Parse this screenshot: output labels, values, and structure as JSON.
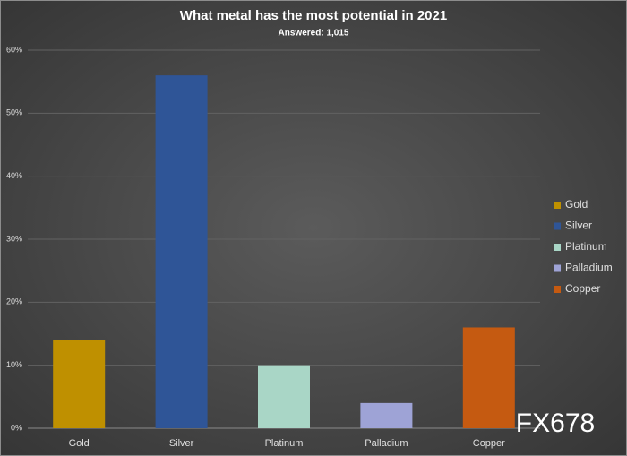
{
  "chart_data": {
    "type": "bar",
    "title": "What metal has the most potential in 2021",
    "subtitle": "Answered: 1,015",
    "categories": [
      "Gold",
      "Silver",
      "Platinum",
      "Palladium",
      "Copper"
    ],
    "values": [
      14,
      56,
      10,
      4,
      16
    ],
    "colors": [
      "#bf9000",
      "#2f5597",
      "#a9d6c6",
      "#9ea3d6",
      "#c55a11"
    ],
    "ylim": [
      0,
      60
    ],
    "yticks": [
      {
        "value": 0,
        "label": "0%"
      },
      {
        "value": 10,
        "label": "10%"
      },
      {
        "value": 20,
        "label": "20%"
      },
      {
        "value": 30,
        "label": "30%"
      },
      {
        "value": 40,
        "label": "40%"
      },
      {
        "value": 50,
        "label": "50%"
      },
      {
        "value": 60,
        "label": "60%"
      }
    ],
    "grid": true,
    "legend": "right",
    "watermark": "FX678"
  }
}
